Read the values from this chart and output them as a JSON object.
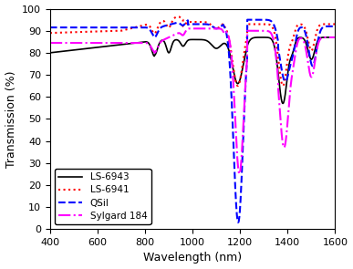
{
  "xlabel": "Wavelength (nm)",
  "ylabel": "Transmission (%)",
  "xlim": [
    400,
    1600
  ],
  "ylim": [
    0,
    100
  ],
  "yticks": [
    0,
    10,
    20,
    30,
    40,
    50,
    60,
    70,
    80,
    90,
    100
  ],
  "xticks": [
    400,
    600,
    800,
    1000,
    1200,
    1400,
    1600
  ],
  "series": {
    "LS-6943": {
      "color": "#000000",
      "linestyle": "solid",
      "linewidth": 1.2,
      "label": "LS-6943"
    },
    "LS-6941": {
      "color": "#ff0000",
      "linestyle": "dotted",
      "linewidth": 1.5,
      "label": "LS-6941"
    },
    "QSil": {
      "color": "#0000ff",
      "linestyle": "dashed",
      "linewidth": 1.5,
      "label": "QSil"
    },
    "Sylgard": {
      "color": "#ff00ff",
      "linestyle": "dashdot",
      "linewidth": 1.5,
      "label": "Sylgard 184"
    }
  },
  "legend_loc": "lower left",
  "legend_fontsize": 7.5
}
